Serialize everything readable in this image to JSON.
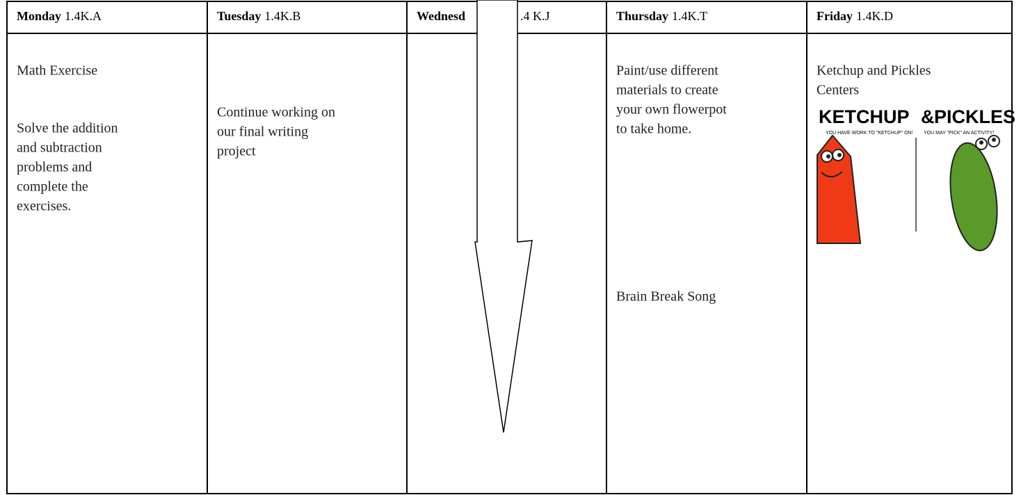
{
  "table": {
    "columns": [
      {
        "day": "Monday",
        "code": "1.4K.A",
        "blocks": [
          [
            "Math Exercise"
          ],
          [
            "Solve the addition",
            "and subtraction",
            "problems and",
            "complete the",
            "exercises."
          ]
        ]
      },
      {
        "day": "Tuesday",
        "code": "1.4K.B",
        "blocks": [
          [
            "Continue working on",
            "our final writing",
            "project"
          ]
        ]
      },
      {
        "day": "Wednesd",
        "code": ".4 K.J",
        "blocks": []
      },
      {
        "day": "Thursday",
        "code": "1.4K.T",
        "blocks": [
          [
            "Paint/use different",
            "materials to create",
            "your own flowerpot",
            "to take home."
          ],
          [
            "Brain Break Song"
          ]
        ]
      },
      {
        "day": "Friday",
        "code": "1.4K.D",
        "blocks": [
          [
            "Ketchup and Pickles",
            "Centers"
          ]
        ],
        "image": {
          "left_title": "KETCHUP",
          "joiner": "&",
          "right_title": "PICKLES",
          "left_caption": "YOU HAVE WORK TO \"KETCHUP\" ON!",
          "right_caption": "YOU MAY \"PICK\" AN ACTIVITY!"
        }
      }
    ]
  }
}
